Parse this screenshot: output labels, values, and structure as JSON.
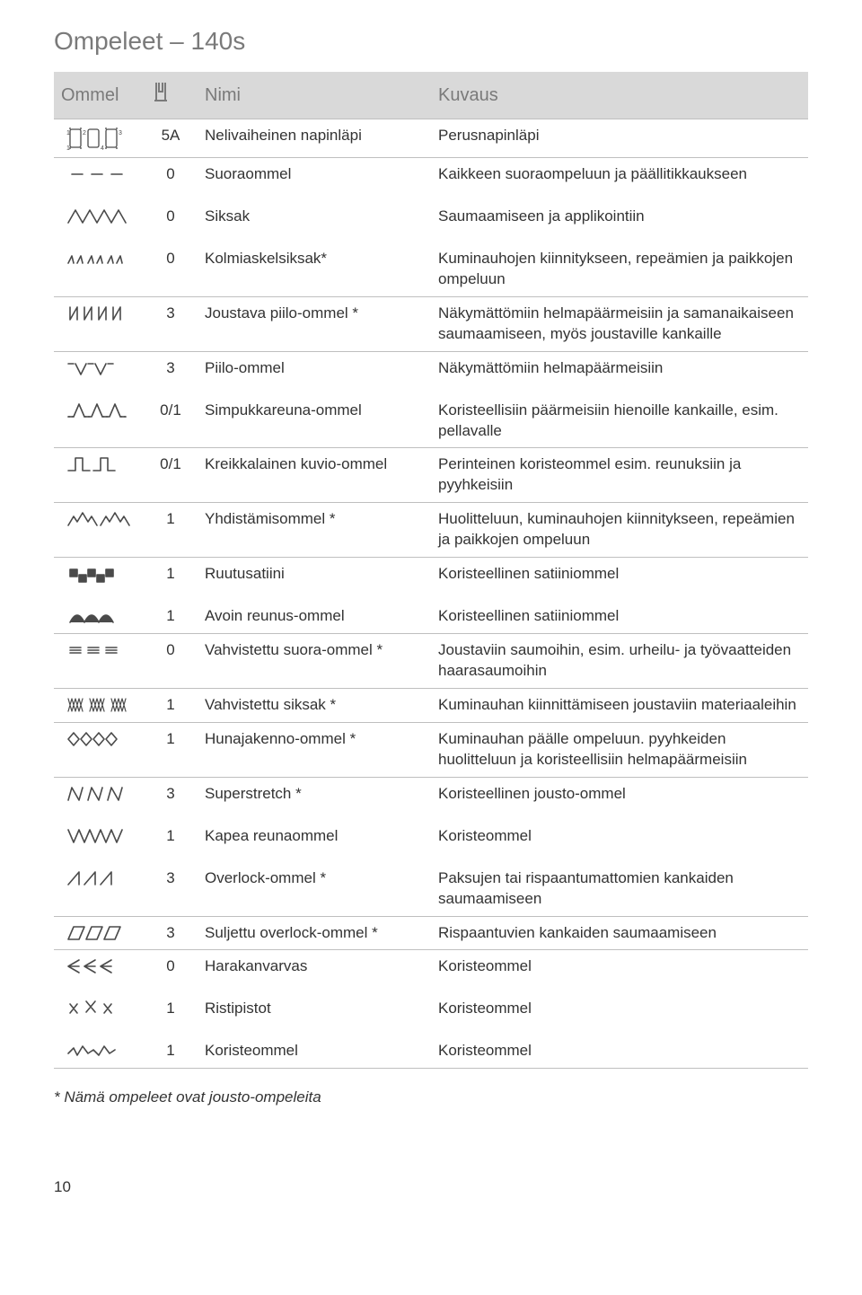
{
  "title": "Ompeleet – 140s",
  "columns": {
    "c1": "Ommel",
    "c2": "",
    "c3": "Nimi",
    "c4": "Kuvaus"
  },
  "footnote": "* Nämä ompeleet ovat jousto-ompeleita",
  "page_number": "10",
  "colors": {
    "header_bg": "#d9d9d9",
    "header_text": "#7a7a7a",
    "border": "#bfbfbf",
    "text": "#333333",
    "stroke": "#4a4a4a"
  },
  "rows": [
    {
      "num": "5A",
      "name": "Nelivaiheinen napinläpi",
      "desc": "Perusnapinläpi"
    },
    {
      "num": "0",
      "name": "Suoraommel",
      "desc": "Kaikkeen suoraompeluun ja päällitikkaukseen"
    },
    {
      "num": "0",
      "name": "Siksak",
      "desc": "Saumaamiseen ja applikointiin",
      "gap": true
    },
    {
      "num": "0",
      "name": "Kolmiaskelsiksak*",
      "desc": "Kuminauhojen kiinnitykseen, repeämien ja paikkojen ompeluun",
      "gap": true
    },
    {
      "num": "3",
      "name": "Joustava piilo-ommel *",
      "desc": "Näkymättömiin helmapäärmeisiin ja samanaikaiseen saumaamiseen, myös joustaville kankaille"
    },
    {
      "num": "3",
      "name": "Piilo-ommel",
      "desc": "Näkymättömiin helmapäärmeisiin"
    },
    {
      "num": "0/1",
      "name": "Simpukkareuna-ommel",
      "desc": "Koristeellisiin päärmeisiin hienoille kankaille, esim. pellavalle",
      "gap": true
    },
    {
      "num": "0/1",
      "name": "Kreikkalainen kuvio-ommel",
      "desc": "Perinteinen koristeommel esim. reunuksiin ja pyyhkeisiin"
    },
    {
      "num": "1",
      "name": "Yhdistämisommel *",
      "desc": "Huolitteluun, kuminauhojen kiinnitykseen, repeämien ja paikkojen ompeluun"
    },
    {
      "num": "1",
      "name": "Ruutusatiini",
      "desc": "Koristeellinen satiiniommel"
    },
    {
      "num": "1",
      "name": "Avoin reunus-ommel",
      "desc": "Koristeellinen satiiniommel",
      "gap": true
    },
    {
      "num": "0",
      "name": "Vahvistettu suora-ommel *",
      "desc": "Joustaviin saumoihin, esim. urheilu- ja työvaatteiden haarasaumoihin"
    },
    {
      "num": "1",
      "name": "Vahvistettu siksak *",
      "desc": "Kuminauhan kiinnittämiseen joustaviin materiaaleihin"
    },
    {
      "num": "1",
      "name": "Hunajakenno-ommel *",
      "desc": "Kuminauhan päälle ompeluun. pyyhkeiden huolitteluun ja koristeellisiin helmapäärmeisiin"
    },
    {
      "num": "3",
      "name": "Superstretch *",
      "desc": "Koristeellinen jousto-ommel"
    },
    {
      "num": "1",
      "name": "Kapea reunaommel",
      "desc": "Koristeommel",
      "gap": true
    },
    {
      "num": "3",
      "name": "Overlock-ommel *",
      "desc": "Paksujen tai rispaantumattomien kankaiden saumaamiseen",
      "gap": true
    },
    {
      "num": "3",
      "name": "Suljettu overlock-ommel *",
      "desc": "Rispaantuvien kankaiden saumaamiseen"
    },
    {
      "num": "0",
      "name": "Harakanvarvas",
      "desc": "Koristeommel"
    },
    {
      "num": "1",
      "name": "Ristipistot",
      "desc": "Koristeommel",
      "gap": true
    },
    {
      "num": "1",
      "name": "Koristeommel",
      "desc": "Koristeommel",
      "gap": true
    }
  ]
}
